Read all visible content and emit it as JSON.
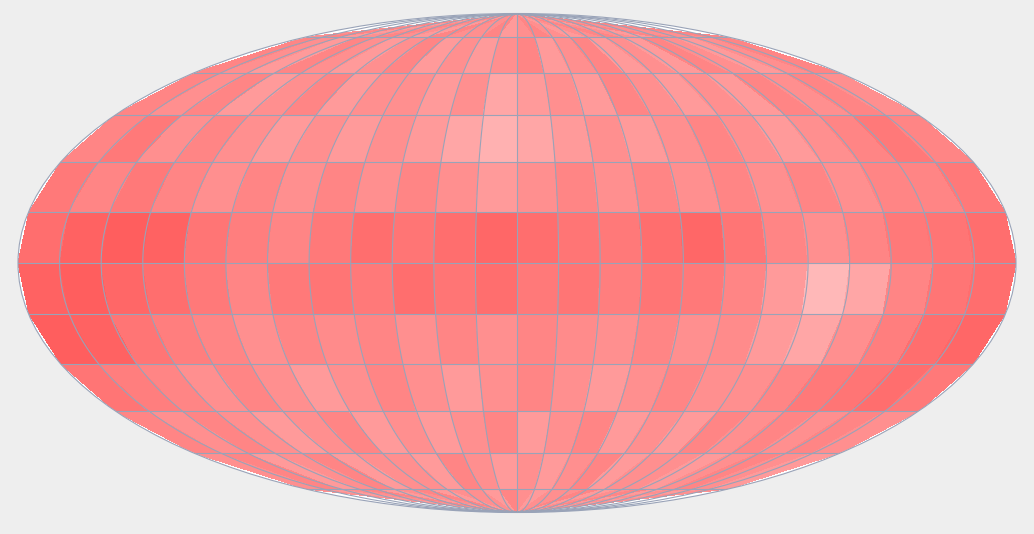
{
  "chart_data": {
    "type": "map",
    "xlim": [
      -180,
      180
    ],
    "ylim": [
      -90,
      90
    ],
    "xticks": [
      -165,
      -150,
      -135,
      -120,
      -105,
      -90,
      -75,
      -60,
      -45,
      -30,
      -15,
      0,
      15,
      30,
      45,
      60,
      75,
      90,
      105,
      120,
      135,
      150,
      165
    ],
    "yticks": [
      -75,
      -60,
      -45,
      -30,
      -15,
      0,
      15,
      30,
      45,
      60,
      75
    ],
    "grid": true,
    "tick_labels": false,
    "color": "#ff2020",
    "color_range": [
      0,
      1
    ],
    "cells": [
      [
        0.5,
        0.55,
        0.45,
        0.5,
        0.55,
        0.5,
        0.45,
        0.55,
        0.5,
        0.5,
        0.55,
        0.45,
        0.5,
        0.55,
        0.5,
        0.45,
        0.5,
        0.55,
        0.5,
        0.45,
        0.55,
        0.5,
        0.5,
        0.55
      ],
      [
        0.55,
        0.5,
        0.45,
        0.55,
        0.5,
        0.45,
        0.5,
        0.55,
        0.45,
        0.5,
        0.45,
        0.5,
        0.55,
        0.45,
        0.5,
        0.55,
        0.45,
        0.5,
        0.45,
        0.55,
        0.5,
        0.45,
        0.5,
        0.55
      ],
      [
        0.55,
        0.5,
        0.55,
        0.45,
        0.5,
        0.55,
        0.45,
        0.5,
        0.5,
        0.45,
        0.5,
        0.4,
        0.45,
        0.5,
        0.45,
        0.55,
        0.5,
        0.45,
        0.5,
        0.45,
        0.55,
        0.5,
        0.55,
        0.5
      ],
      [
        0.55,
        0.6,
        0.5,
        0.55,
        0.5,
        0.45,
        0.5,
        0.45,
        0.5,
        0.45,
        0.4,
        0.35,
        0.4,
        0.45,
        0.5,
        0.45,
        0.5,
        0.55,
        0.5,
        0.45,
        0.5,
        0.55,
        0.6,
        0.55
      ],
      [
        0.6,
        0.55,
        0.6,
        0.55,
        0.5,
        0.55,
        0.5,
        0.55,
        0.5,
        0.55,
        0.5,
        0.45,
        0.5,
        0.55,
        0.5,
        0.55,
        0.5,
        0.55,
        0.5,
        0.55,
        0.5,
        0.55,
        0.55,
        0.6
      ],
      [
        0.65,
        0.7,
        0.72,
        0.7,
        0.62,
        0.58,
        0.55,
        0.6,
        0.65,
        0.62,
        0.65,
        0.68,
        0.65,
        0.62,
        0.6,
        0.65,
        0.68,
        0.62,
        0.55,
        0.5,
        0.55,
        0.6,
        0.62,
        0.65
      ],
      [
        0.7,
        0.72,
        0.68,
        0.65,
        0.6,
        0.55,
        0.6,
        0.62,
        0.6,
        0.65,
        0.62,
        0.65,
        0.6,
        0.62,
        0.58,
        0.62,
        0.6,
        0.55,
        0.45,
        0.32,
        0.4,
        0.55,
        0.62,
        0.65
      ],
      [
        0.72,
        0.7,
        0.62,
        0.58,
        0.55,
        0.5,
        0.55,
        0.52,
        0.55,
        0.5,
        0.55,
        0.5,
        0.55,
        0.52,
        0.5,
        0.55,
        0.5,
        0.52,
        0.45,
        0.4,
        0.5,
        0.58,
        0.65,
        0.68
      ],
      [
        0.62,
        0.58,
        0.55,
        0.5,
        0.55,
        0.5,
        0.45,
        0.5,
        0.55,
        0.5,
        0.45,
        0.5,
        0.55,
        0.5,
        0.45,
        0.5,
        0.55,
        0.5,
        0.5,
        0.55,
        0.6,
        0.62,
        0.65,
        0.6
      ],
      [
        0.55,
        0.5,
        0.55,
        0.5,
        0.45,
        0.5,
        0.55,
        0.45,
        0.5,
        0.45,
        0.5,
        0.55,
        0.45,
        0.5,
        0.55,
        0.45,
        0.5,
        0.45,
        0.55,
        0.5,
        0.55,
        0.5,
        0.55,
        0.5
      ],
      [
        0.5,
        0.55,
        0.45,
        0.5,
        0.55,
        0.45,
        0.5,
        0.5,
        0.45,
        0.55,
        0.5,
        0.45,
        0.5,
        0.45,
        0.5,
        0.55,
        0.45,
        0.5,
        0.5,
        0.45,
        0.5,
        0.55,
        0.5,
        0.45
      ],
      [
        0.5,
        0.45,
        0.5,
        0.55,
        0.45,
        0.5,
        0.55,
        0.45,
        0.5,
        0.5,
        0.45,
        0.55,
        0.5,
        0.45,
        0.5,
        0.5,
        0.55,
        0.45,
        0.5,
        0.55,
        0.45,
        0.5,
        0.45,
        0.5
      ]
    ]
  }
}
